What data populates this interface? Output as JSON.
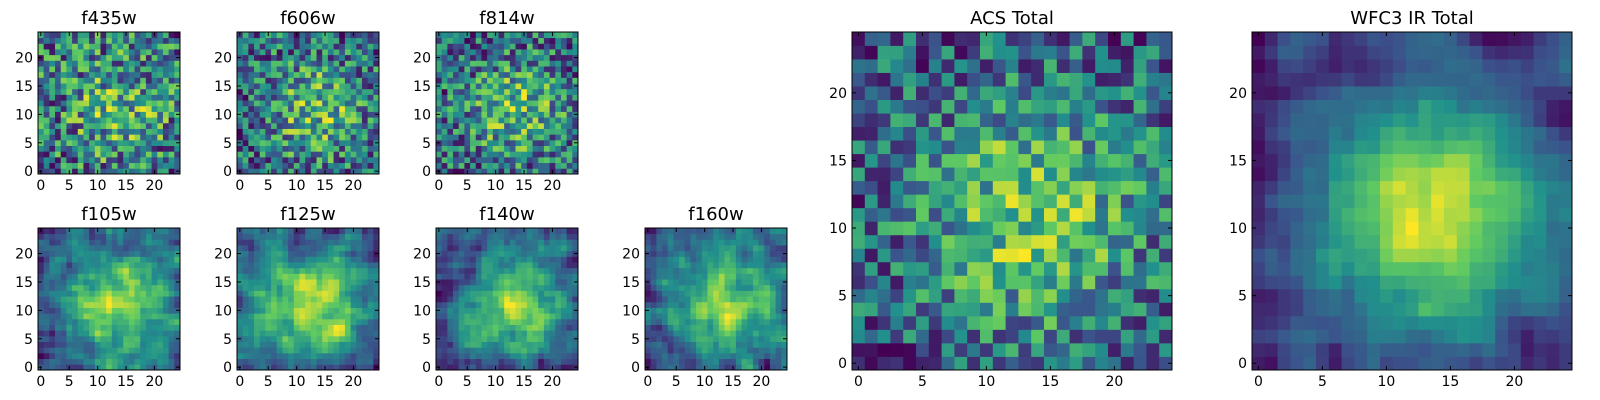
{
  "figure": {
    "colormap": "viridis",
    "colors": [
      "#440154",
      "#3b528b",
      "#21918c",
      "#5ec962",
      "#fde725"
    ]
  },
  "chart_data": [
    {
      "type": "heatmap",
      "title": "f435w",
      "grid": [
        25,
        25
      ],
      "xlim": [
        -0.5,
        24.5
      ],
      "ylim": [
        -0.5,
        24.5
      ],
      "xticks": [
        0,
        5,
        10,
        15,
        20
      ],
      "yticks": [
        0,
        5,
        10,
        15,
        20
      ],
      "seed": 11,
      "center_strength": 0.25,
      "noise": 0.75,
      "smooth": 0
    },
    {
      "type": "heatmap",
      "title": "f606w",
      "grid": [
        25,
        25
      ],
      "xlim": [
        -0.5,
        24.5
      ],
      "ylim": [
        -0.5,
        24.5
      ],
      "xticks": [
        0,
        5,
        10,
        15,
        20
      ],
      "yticks": [
        0,
        5,
        10,
        15,
        20
      ],
      "seed": 23,
      "center_strength": 0.35,
      "noise": 0.7,
      "smooth": 0
    },
    {
      "type": "heatmap",
      "title": "f814w",
      "grid": [
        25,
        25
      ],
      "xlim": [
        -0.5,
        24.5
      ],
      "ylim": [
        -0.5,
        24.5
      ],
      "xticks": [
        0,
        5,
        10,
        15,
        20
      ],
      "yticks": [
        0,
        5,
        10,
        15,
        20
      ],
      "seed": 37,
      "center_strength": 0.35,
      "noise": 0.7,
      "smooth": 0
    },
    {
      "type": "heatmap",
      "title": "f105w",
      "grid": [
        25,
        25
      ],
      "xlim": [
        -0.5,
        24.5
      ],
      "ylim": [
        -0.5,
        24.5
      ],
      "xticks": [
        0,
        5,
        10,
        15,
        20
      ],
      "yticks": [
        0,
        5,
        10,
        15,
        20
      ],
      "seed": 41,
      "center_strength": 0.4,
      "noise": 0.7,
      "smooth": 1
    },
    {
      "type": "heatmap",
      "title": "f125w",
      "grid": [
        25,
        25
      ],
      "xlim": [
        -0.5,
        24.5
      ],
      "ylim": [
        -0.5,
        24.5
      ],
      "xticks": [
        0,
        5,
        10,
        15,
        20
      ],
      "yticks": [
        0,
        5,
        10,
        15,
        20
      ],
      "seed": 53,
      "center_strength": 0.4,
      "noise": 0.7,
      "smooth": 1
    },
    {
      "type": "heatmap",
      "title": "f140w",
      "grid": [
        25,
        25
      ],
      "xlim": [
        -0.5,
        24.5
      ],
      "ylim": [
        -0.5,
        24.5
      ],
      "xticks": [
        0,
        5,
        10,
        15,
        20
      ],
      "yticks": [
        0,
        5,
        10,
        15,
        20
      ],
      "seed": 67,
      "center_strength": 0.4,
      "noise": 0.7,
      "smooth": 1
    },
    {
      "type": "heatmap",
      "title": "f160w",
      "grid": [
        25,
        25
      ],
      "xlim": [
        -0.5,
        24.5
      ],
      "ylim": [
        -0.5,
        24.5
      ],
      "xticks": [
        0,
        5,
        10,
        15,
        20
      ],
      "yticks": [
        0,
        5,
        10,
        15,
        20
      ],
      "seed": 79,
      "center_strength": 0.4,
      "noise": 0.7,
      "smooth": 1
    },
    {
      "type": "heatmap",
      "title": "ACS Total",
      "grid": [
        25,
        25
      ],
      "xlim": [
        -0.5,
        24.5
      ],
      "ylim": [
        -0.5,
        24.5
      ],
      "xticks": [
        0,
        5,
        10,
        15,
        20
      ],
      "yticks": [
        0,
        5,
        10,
        15,
        20
      ],
      "seed": 97,
      "center_strength": 0.45,
      "noise": 0.6,
      "smooth": 0
    },
    {
      "type": "heatmap",
      "title": "WFC3 IR Total",
      "grid": [
        25,
        25
      ],
      "xlim": [
        -0.5,
        24.5
      ],
      "ylim": [
        -0.5,
        24.5
      ],
      "xticks": [
        0,
        5,
        10,
        15,
        20
      ],
      "yticks": [
        0,
        5,
        10,
        15,
        20
      ],
      "seed": 113,
      "center_strength": 0.6,
      "noise": 0.5,
      "smooth": 1
    }
  ]
}
